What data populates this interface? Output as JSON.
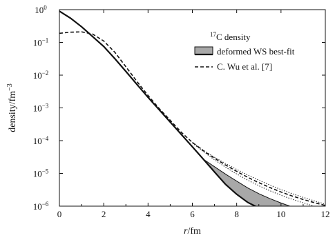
{
  "chart_data": {
    "type": "line",
    "title": "",
    "xlabel_italic": "r",
    "xlabel_unit": "/fm",
    "ylabel": "density/fm",
    "ylabel_exp": "−3",
    "xscale": "linear",
    "yscale": "log",
    "xlim": [
      0,
      12
    ],
    "ylim": [
      1e-06,
      1
    ],
    "xticks": [
      0,
      2,
      4,
      6,
      8,
      10,
      12
    ],
    "yticks": [
      {
        "exp": 0,
        "mantissa": "10",
        "label": "0"
      },
      {
        "exp": -1,
        "mantissa": "10",
        "label": "−1"
      },
      {
        "exp": -2,
        "mantissa": "10",
        "label": "−2"
      },
      {
        "exp": -3,
        "mantissa": "10",
        "label": "−3"
      },
      {
        "exp": -4,
        "mantissa": "10",
        "label": "−4"
      },
      {
        "exp": -5,
        "mantissa": "10",
        "label": "−5"
      },
      {
        "exp": -6,
        "mantissa": "10",
        "label": "−6"
      }
    ],
    "grid": false,
    "legend": {
      "placement": "top-right",
      "title_sup": "17",
      "title_main": "C density"
    },
    "series": [
      {
        "name": "deformed WS best-fit",
        "style": "band",
        "color": "#111111",
        "fill": "#a8a8a8",
        "x": [
          0,
          0.5,
          1,
          1.5,
          2,
          2.5,
          3,
          3.5,
          4,
          4.5,
          5,
          5.5,
          6,
          6.5,
          7,
          7.5,
          8,
          8.5,
          9,
          9.5,
          10,
          10.5,
          11,
          11.5,
          12
        ],
        "lower": [
          0.9,
          0.55,
          0.3,
          0.15,
          0.075,
          0.032,
          0.013,
          0.0052,
          0.0021,
          0.00088,
          0.00037,
          0.000155,
          6.5e-05,
          2.7e-05,
          1.1e-05,
          4.6e-06,
          2.3e-06,
          1.3e-06,
          8.8e-07,
          6e-07,
          4.1e-07,
          2.8e-07,
          1.9e-07,
          1.3e-07,
          9e-08
        ],
        "upper": [
          0.9,
          0.55,
          0.3,
          0.15,
          0.075,
          0.032,
          0.013,
          0.0052,
          0.0021,
          0.00088,
          0.00037,
          0.000155,
          6.5e-05,
          2.7e-05,
          1.6e-05,
          9.5e-06,
          5.8e-06,
          3.6e-06,
          2.4e-06,
          1.7e-06,
          1.25e-06,
          9.5e-07,
          7.5e-07,
          6e-07,
          4.8e-07
        ]
      },
      {
        "name": "C. Wu et al. [7]",
        "style": "dashed",
        "color": "#111111",
        "x": [
          0,
          0.5,
          1,
          1.5,
          2,
          2.5,
          3,
          3.5,
          4,
          4.5,
          5,
          5.5,
          6,
          6.5,
          7,
          7.5,
          8,
          8.5,
          9,
          9.5,
          10,
          10.5,
          11,
          11.5,
          12
        ],
        "y": [
          0.19,
          0.205,
          0.21,
          0.18,
          0.11,
          0.05,
          0.018,
          0.0064,
          0.0024,
          0.00096,
          0.00042,
          0.00018,
          8.8e-05,
          4.9e-05,
          2.9e-05,
          1.8e-05,
          1.15e-05,
          7.6e-06,
          5.2e-06,
          3.7e-06,
          2.7e-06,
          2.05e-06,
          1.6e-06,
          1.28e-06,
          1.05e-06
        ]
      },
      {
        "name": "",
        "style": "dotted",
        "color": "#333333",
        "x": [
          6,
          6.5,
          7,
          7.5,
          8,
          8.5,
          9,
          9.5,
          10,
          10.5,
          11,
          11.5,
          12
        ],
        "y": [
          8.5e-05,
          4.6e-05,
          2.6e-05,
          1.55e-05,
          9.6e-06,
          6.2e-06,
          4.2e-06,
          2.95e-06,
          2.15e-06,
          1.62e-06,
          1.26e-06,
          1e-06,
          8.2e-07
        ]
      },
      {
        "name": "",
        "style": "dotted",
        "color": "#333333",
        "x": [
          6,
          6.5,
          7,
          7.5,
          8,
          8.5,
          9,
          9.5,
          10,
          10.5,
          11,
          11.5,
          12
        ],
        "y": [
          9e-05,
          5.1e-05,
          3.1e-05,
          2e-05,
          1.32e-05,
          8.9e-06,
          6.2e-06,
          4.4e-06,
          3.2e-06,
          2.4e-06,
          1.85e-06,
          1.45e-06,
          1.15e-06
        ]
      }
    ]
  }
}
